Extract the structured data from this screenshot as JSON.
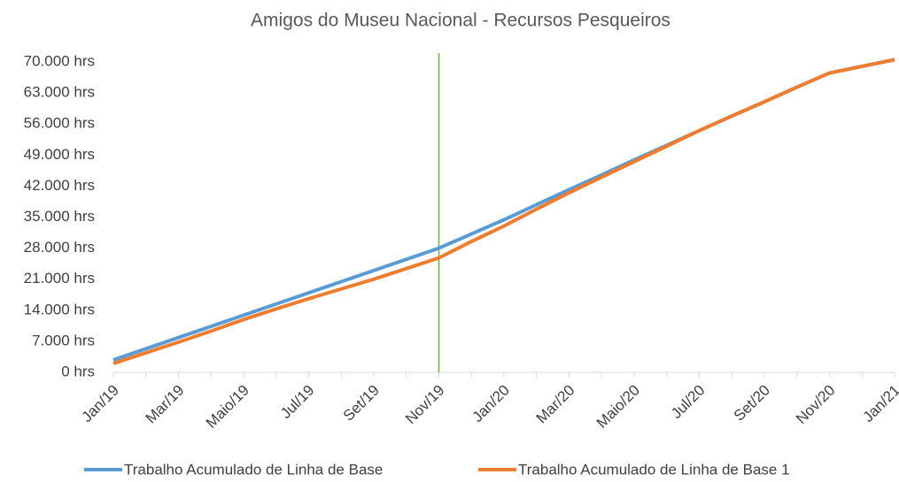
{
  "chart_data": {
    "type": "line",
    "title": "Amigos do Museu Nacional - Recursos Pesqueiros",
    "categories": [
      "Jan/19",
      null,
      "Mar/19",
      null,
      "Maio/19",
      null,
      "Jul/19",
      null,
      "Set/19",
      null,
      "Nov/19",
      null,
      "Jan/20",
      null,
      "Mar/20",
      null,
      "Maio/20",
      null,
      "Jul/20",
      null,
      "Set/20",
      null,
      "Nov/20",
      null,
      "Jan/21"
    ],
    "series": [
      {
        "name": "Trabalho Acumulado de Linha de Base",
        "color": "#5b9bd5",
        "values": [
          2800,
          5320,
          7840,
          10360,
          12880,
          15400,
          17920,
          20440,
          22960,
          25480,
          28000,
          31200,
          34400,
          37800,
          41200,
          44500,
          47900,
          51200,
          54500,
          57800,
          61000,
          64300,
          67500,
          69000,
          70500
        ]
      },
      {
        "name": "Trabalho Acumulado de Linha de Base 1",
        "color": "#ed7d31",
        "values": [
          2000,
          4400,
          6800,
          9300,
          11900,
          14300,
          16600,
          18800,
          21000,
          23400,
          25800,
          29500,
          33000,
          36800,
          40500,
          44000,
          47500,
          51000,
          54500,
          57800,
          61000,
          64300,
          67500,
          69000,
          70500
        ]
      }
    ],
    "ylim": [
      0,
      70000
    ],
    "yticks": [
      {
        "value": 0,
        "label": "0 hrs"
      },
      {
        "value": 7000,
        "label": "7.000 hrs"
      },
      {
        "value": 14000,
        "label": "14.000 hrs"
      },
      {
        "value": 21000,
        "label": "21.000 hrs"
      },
      {
        "value": 28000,
        "label": "28.000 hrs"
      },
      {
        "value": 35000,
        "label": "35.000 hrs"
      },
      {
        "value": 42000,
        "label": "42.000 hrs"
      },
      {
        "value": 49000,
        "label": "49.000 hrs"
      },
      {
        "value": 56000,
        "label": "56.000 hrs"
      },
      {
        "value": 63000,
        "label": "63.000 hrs"
      },
      {
        "value": 70000,
        "label": "70.000 hrs"
      }
    ],
    "grid": false,
    "legend": "bottom",
    "vline": {
      "x": 10,
      "color": "#70ad47"
    }
  }
}
